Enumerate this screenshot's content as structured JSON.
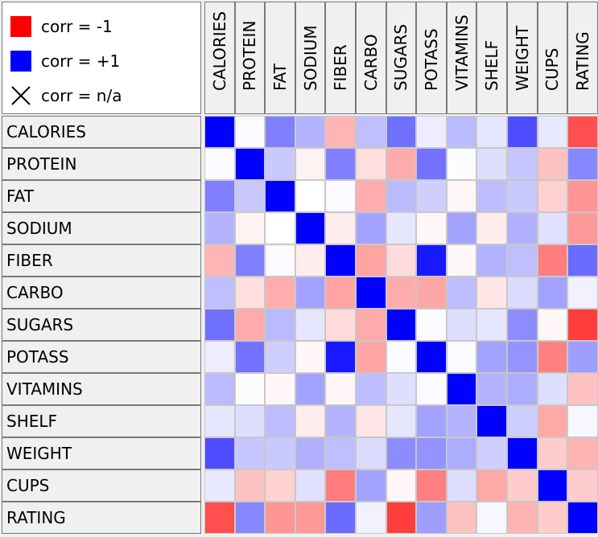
{
  "legend": {
    "neg_label": "corr = -1",
    "pos_label": "corr = +1",
    "na_label": "corr = n/a",
    "neg_color": "#ff0000",
    "pos_color": "#0000ff"
  },
  "chart_data": {
    "type": "heatmap",
    "title": "",
    "variables": [
      "CALORIES",
      "PROTEIN",
      "FAT",
      "SODIUM",
      "FIBER",
      "CARBO",
      "SUGARS",
      "POTASS",
      "VITAMINS",
      "SHELF",
      "WEIGHT",
      "CUPS",
      "RATING"
    ],
    "value_range": [
      -1,
      1
    ],
    "matrix": [
      [
        1.0,
        0.02,
        0.5,
        0.3,
        -0.29,
        0.25,
        0.56,
        0.07,
        0.27,
        0.1,
        0.7,
        0.09,
        -0.69
      ],
      [
        0.02,
        1.0,
        0.21,
        -0.05,
        0.5,
        -0.13,
        -0.33,
        0.55,
        0.01,
        0.13,
        0.22,
        -0.24,
        0.47
      ],
      [
        0.5,
        0.21,
        1.0,
        0.0,
        0.02,
        -0.32,
        0.27,
        0.19,
        -0.03,
        0.26,
        0.21,
        -0.18,
        -0.41
      ],
      [
        0.3,
        -0.05,
        0.0,
        1.0,
        -0.07,
        0.36,
        0.1,
        -0.03,
        0.36,
        -0.07,
        0.31,
        0.12,
        -0.4
      ],
      [
        -0.29,
        0.5,
        0.02,
        -0.07,
        1.0,
        -0.36,
        -0.14,
        0.9,
        -0.03,
        0.3,
        0.25,
        -0.51,
        0.58
      ],
      [
        0.25,
        -0.13,
        -0.32,
        0.36,
        -0.36,
        1.0,
        -0.33,
        -0.35,
        0.26,
        -0.1,
        0.14,
        0.36,
        0.05
      ],
      [
        0.56,
        -0.33,
        0.27,
        0.1,
        -0.14,
        -0.33,
        1.0,
        0.02,
        0.13,
        0.1,
        0.45,
        -0.03,
        -0.76
      ],
      [
        0.07,
        0.55,
        0.19,
        -0.03,
        0.9,
        -0.35,
        0.02,
        1.0,
        0.02,
        0.36,
        0.42,
        -0.5,
        0.38
      ],
      [
        0.27,
        0.01,
        -0.03,
        0.36,
        -0.03,
        0.26,
        0.13,
        0.02,
        1.0,
        0.3,
        0.32,
        0.13,
        -0.24
      ],
      [
        0.1,
        0.13,
        0.26,
        -0.07,
        0.3,
        -0.1,
        0.1,
        0.36,
        0.3,
        1.0,
        0.19,
        -0.34,
        0.03
      ],
      [
        0.7,
        0.22,
        0.21,
        0.31,
        0.25,
        0.14,
        0.45,
        0.42,
        0.32,
        0.19,
        1.0,
        -0.2,
        -0.3
      ],
      [
        0.09,
        -0.24,
        -0.18,
        0.12,
        -0.51,
        0.36,
        -0.03,
        -0.5,
        0.13,
        -0.34,
        -0.2,
        1.0,
        -0.2
      ],
      [
        -0.69,
        0.47,
        -0.41,
        -0.4,
        0.58,
        0.05,
        -0.76,
        0.38,
        -0.24,
        0.03,
        -0.3,
        -0.2,
        1.0
      ]
    ]
  }
}
